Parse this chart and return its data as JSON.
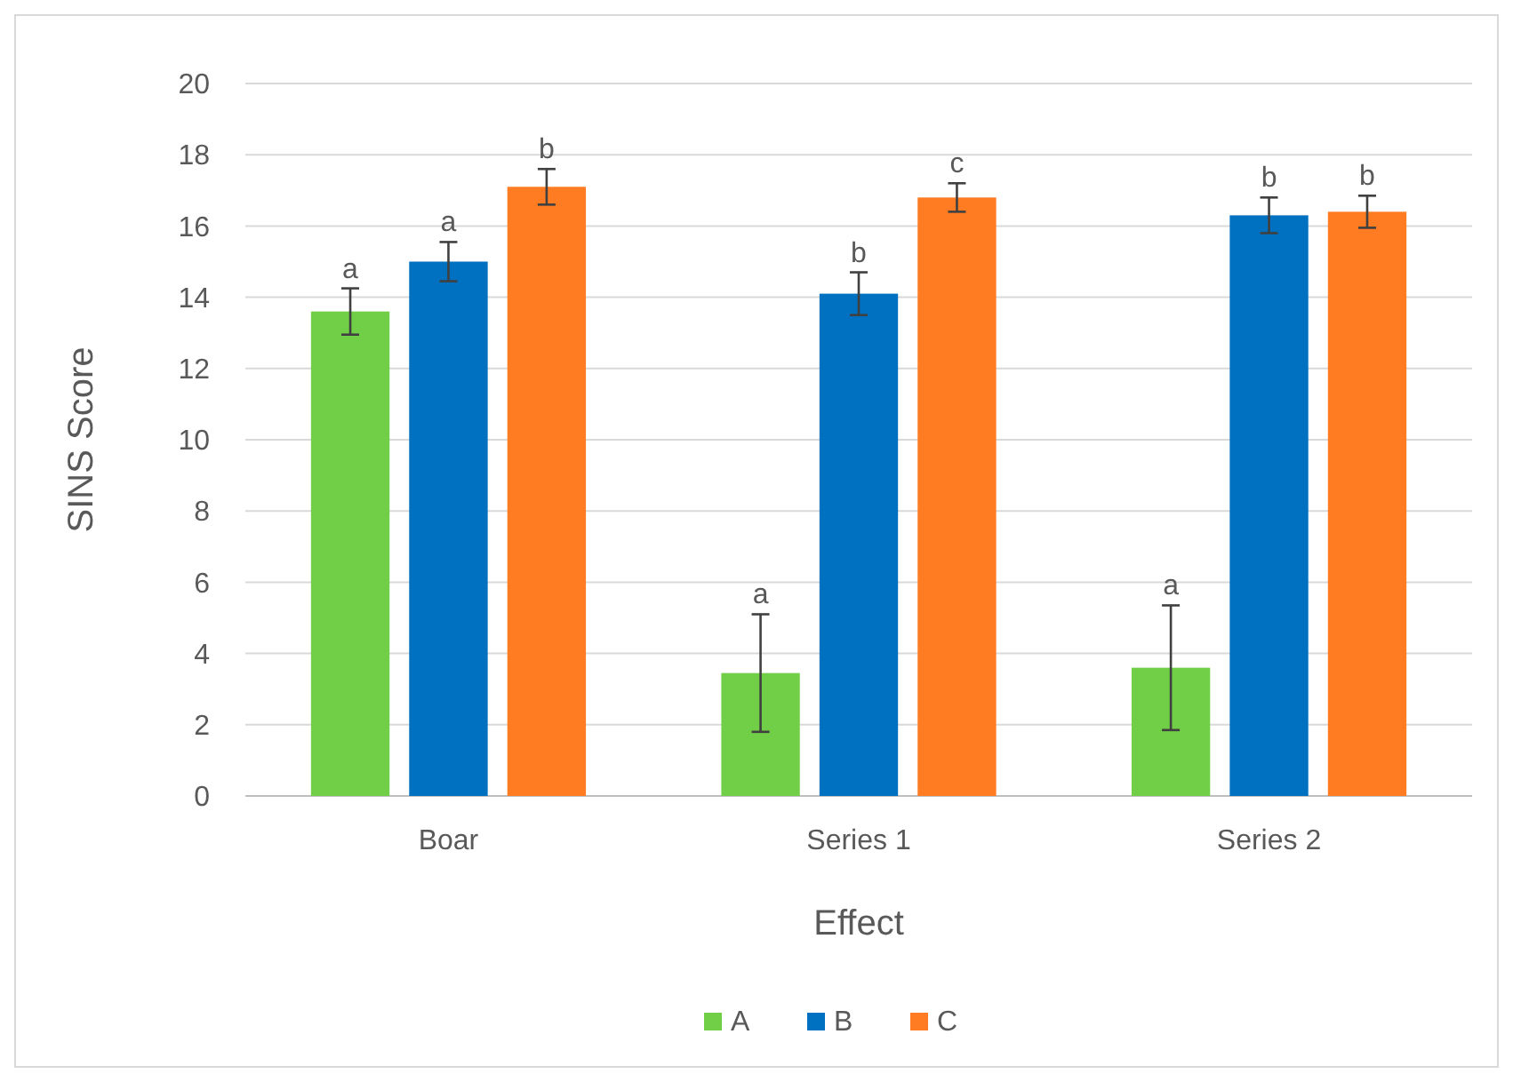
{
  "chart_data": {
    "type": "bar",
    "xlabel": "Effect",
    "ylabel": "SINS Score",
    "categories": [
      "Boar",
      "Series 1",
      "Series 2"
    ],
    "series": [
      {
        "name": "A",
        "color": "#70cf46",
        "values": [
          13.6,
          3.45,
          3.6
        ],
        "errors": [
          0.65,
          1.65,
          1.75
        ],
        "value_labels": [
          "a",
          "a",
          "a"
        ]
      },
      {
        "name": "B",
        "color": "#0070c0",
        "values": [
          15.0,
          14.1,
          16.3
        ],
        "errors": [
          0.55,
          0.6,
          0.5
        ],
        "value_labels": [
          "a",
          "b",
          "b"
        ]
      },
      {
        "name": "C",
        "color": "#ff7c23",
        "values": [
          17.1,
          16.8,
          16.4
        ],
        "errors": [
          0.5,
          0.4,
          0.45
        ],
        "value_labels": [
          "b",
          "c",
          "b"
        ]
      }
    ],
    "ylim": [
      0,
      20
    ],
    "yticks": [
      0,
      2,
      4,
      6,
      8,
      10,
      12,
      14,
      16,
      18,
      20
    ],
    "grid": "y",
    "legend": "bottom"
  }
}
